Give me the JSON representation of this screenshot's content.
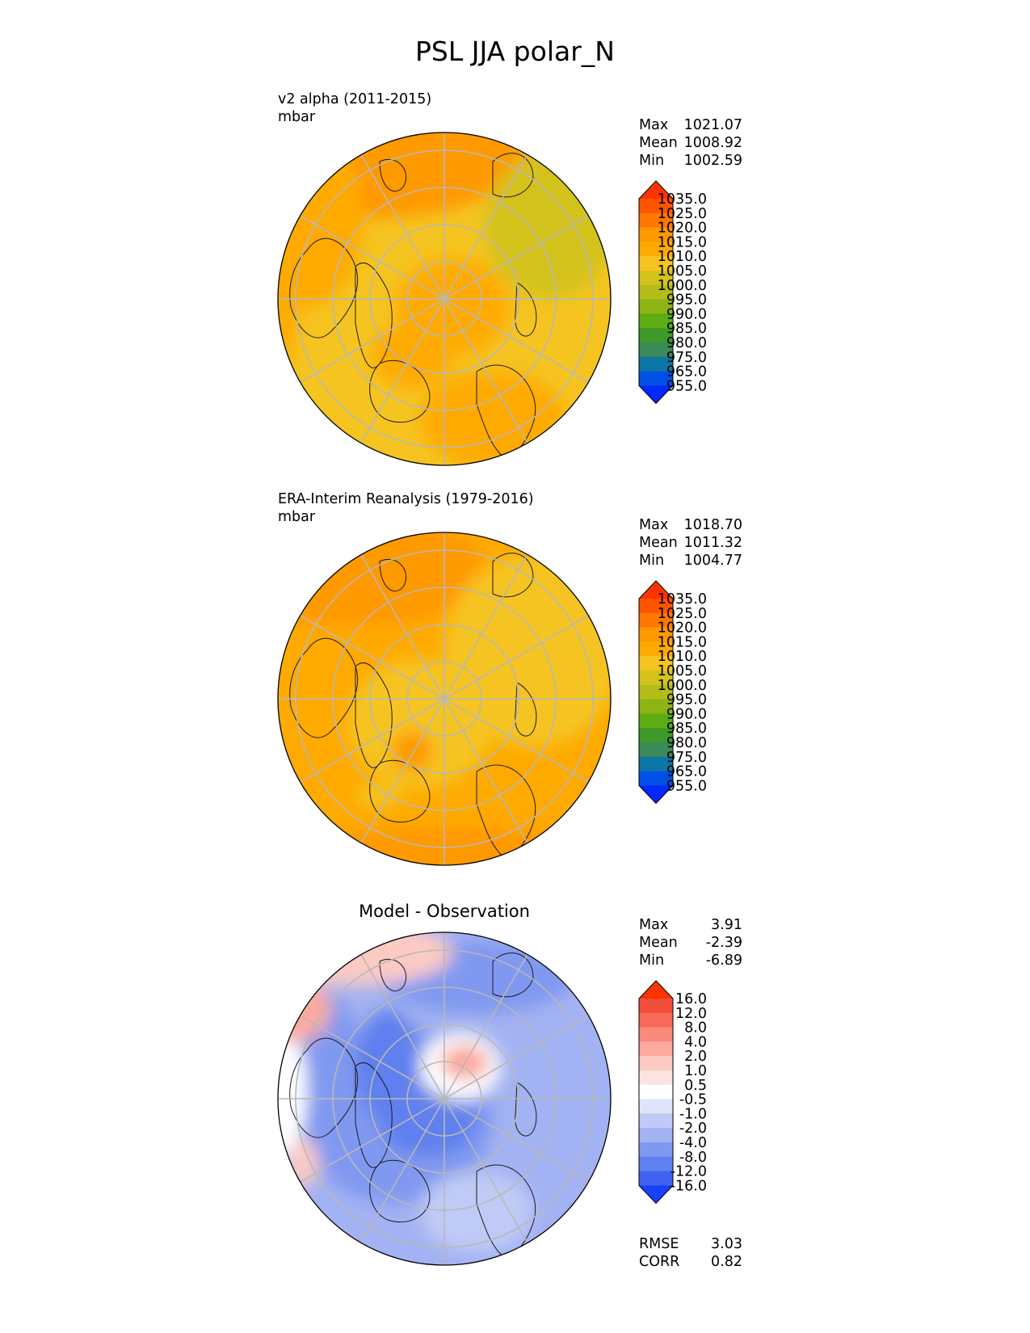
{
  "figure_title": "PSL JJA polar_N",
  "panels": [
    {
      "title": "v2 alpha (2011-2015)",
      "units": "mbar",
      "stats": [
        {
          "label": "Max",
          "value": "1021.07"
        },
        {
          "label": "Mean",
          "value": "1008.92"
        },
        {
          "label": "Min",
          "value": "1002.59"
        }
      ],
      "colorbar": {
        "labels": [
          "1035.0",
          "1025.0",
          "1020.0",
          "1015.0",
          "1010.0",
          "1005.0",
          "1000.0",
          "995.0",
          "990.0",
          "985.0",
          "980.0",
          "975.0",
          "965.0",
          "955.0"
        ],
        "colors": [
          "#ff3300",
          "#ff5500",
          "#ff7700",
          "#ff9900",
          "#ffaa00",
          "#f5c420",
          "#d4c21c",
          "#b4bc18",
          "#8cb414",
          "#5cac12",
          "#3c9a28",
          "#3a8a5a",
          "#0c76a6",
          "#0050e6",
          "#0028ff"
        ]
      }
    },
    {
      "title": "ERA-Interim Reanalysis (1979-2016)",
      "units": "mbar",
      "stats": [
        {
          "label": "Max",
          "value": "1018.70"
        },
        {
          "label": "Mean",
          "value": "1011.32"
        },
        {
          "label": "Min",
          "value": "1004.77"
        }
      ],
      "colorbar": {
        "labels": [
          "1035.0",
          "1025.0",
          "1020.0",
          "1015.0",
          "1010.0",
          "1005.0",
          "1000.0",
          "995.0",
          "990.0",
          "985.0",
          "980.0",
          "975.0",
          "965.0",
          "955.0"
        ],
        "colors": [
          "#ff3300",
          "#ff5500",
          "#ff7700",
          "#ff9900",
          "#ffaa00",
          "#f5c420",
          "#d4c21c",
          "#b4bc18",
          "#8cb414",
          "#5cac12",
          "#3c9a28",
          "#3a8a5a",
          "#0c76a6",
          "#0050e6",
          "#0028ff"
        ]
      }
    },
    {
      "title": "Model - Observation",
      "stats": [
        {
          "label": "Max",
          "value": "3.91"
        },
        {
          "label": "Mean",
          "value": "-2.39"
        },
        {
          "label": "Min",
          "value": "-6.89"
        }
      ],
      "extra_stats": [
        {
          "label": "RMSE",
          "value": "3.03"
        },
        {
          "label": "CORR",
          "value": "0.82"
        }
      ],
      "colorbar": {
        "labels": [
          "16.0",
          "12.0",
          "8.0",
          "4.0",
          "2.0",
          "1.0",
          "0.5",
          "-0.5",
          "-1.0",
          "-2.0",
          "-4.0",
          "-8.0",
          "-12.0",
          "-16.0"
        ],
        "colors": [
          "#ff3300",
          "#f04f3c",
          "#f86a5a",
          "#fb8a7c",
          "#fcaaa0",
          "#fdcac4",
          "#fde4e2",
          "#ffffff",
          "#dfe4fb",
          "#c0caf6",
          "#a3b2f2",
          "#8099f0",
          "#5f80ee",
          "#3f62f3",
          "#1a40ff"
        ]
      }
    }
  ],
  "chart_data": [
    {
      "type": "heatmap",
      "projection": "north-polar-stereographic",
      "title": "v2 alpha (2011-2015)",
      "units": "mbar",
      "stats": {
        "max": 1021.07,
        "mean": 1008.92,
        "min": 1002.59
      },
      "levels": [
        955,
        965,
        975,
        980,
        985,
        990,
        995,
        1000,
        1005,
        1010,
        1015,
        1020,
        1025,
        1035
      ]
    },
    {
      "type": "heatmap",
      "projection": "north-polar-stereographic",
      "title": "ERA-Interim Reanalysis (1979-2016)",
      "units": "mbar",
      "stats": {
        "max": 1018.7,
        "mean": 1011.32,
        "min": 1004.77
      },
      "levels": [
        955,
        965,
        975,
        980,
        985,
        990,
        995,
        1000,
        1005,
        1010,
        1015,
        1020,
        1025,
        1035
      ]
    },
    {
      "type": "heatmap",
      "projection": "north-polar-stereographic",
      "title": "Model - Observation",
      "stats": {
        "max": 3.91,
        "mean": -2.39,
        "min": -6.89,
        "rmse": 3.03,
        "corr": 0.82
      },
      "levels": [
        -16,
        -12,
        -8,
        -4,
        -2,
        -1,
        -0.5,
        0.5,
        1,
        2,
        4,
        8,
        12,
        16
      ]
    }
  ]
}
